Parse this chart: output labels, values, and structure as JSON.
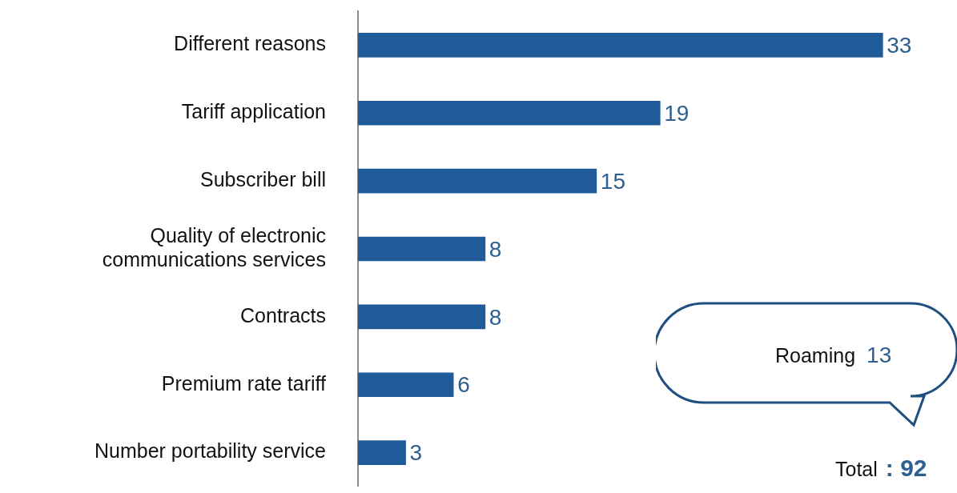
{
  "chart_data": {
    "type": "bar",
    "orientation": "horizontal",
    "categories": [
      "Different reasons",
      "Tariff application",
      "Subscriber bill",
      "Quality of electronic communications services",
      "Contracts",
      "Premium rate tariff",
      "Number portability service"
    ],
    "values": [
      33,
      19,
      15,
      8,
      8,
      6,
      3
    ],
    "color": "#1f5b98",
    "tick_labels": "y",
    "data_labels": true,
    "legend": false,
    "annotations": [
      "Roaming 13",
      "Total : 92"
    ]
  }
}
